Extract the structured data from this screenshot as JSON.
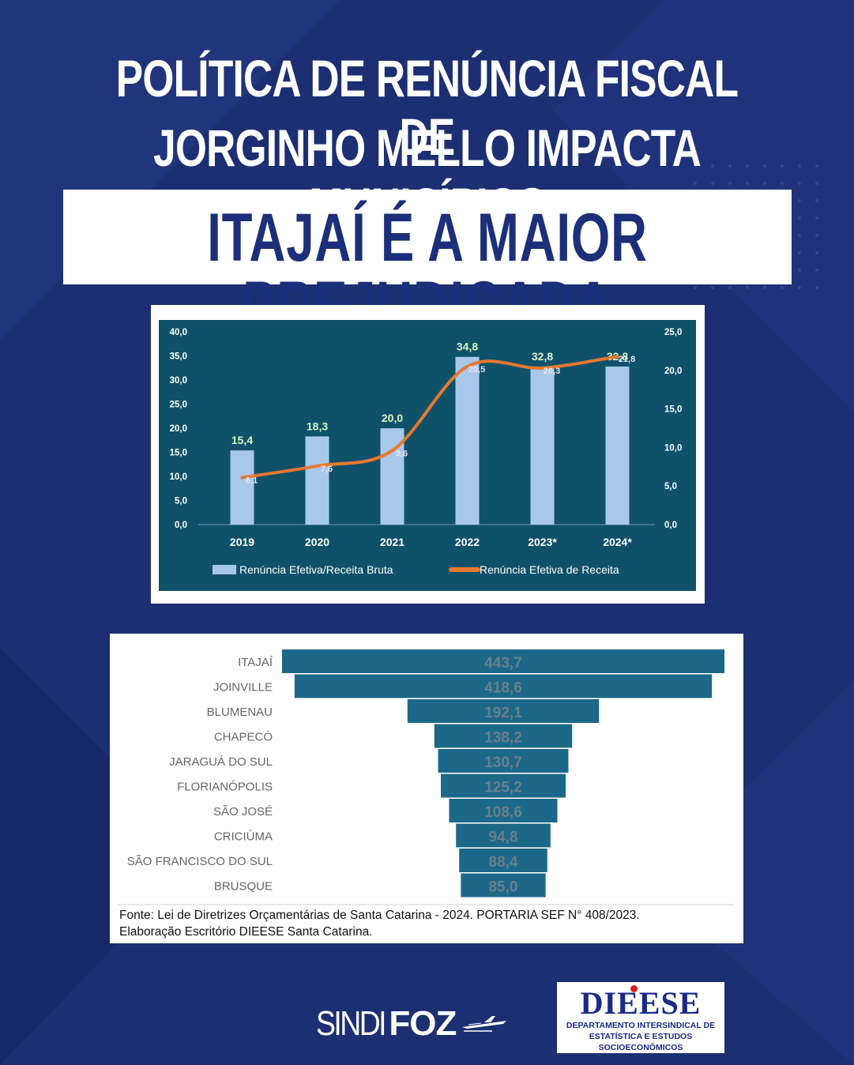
{
  "colors": {
    "background": "#1c2f73",
    "chart1_panel": "#0f5169",
    "bar_light": "#a8c8ea",
    "line_orange": "#e87830",
    "funnel_bar": "#1c6889",
    "funnel_label": "#6a7f8a",
    "title_navy": "#1b2f7a"
  },
  "header": {
    "line1": "POLÍTICA DE RENÚNCIA FISCAL DE",
    "line2": "JORGINHO MELLO IMPACTA MUNICÍPIOS",
    "subtitle": "ITAJAÍ É A MAIOR PREJUDICADA"
  },
  "chart_data": [
    {
      "type": "bar",
      "categories": [
        "2019",
        "2020",
        "2021",
        "2022",
        "2023*",
        "2024*"
      ],
      "series": [
        {
          "name": "Renúncia Efetiva/Receita Bruta",
          "type": "bar",
          "axis": "left",
          "values": [
            15.4,
            18.3,
            20.0,
            34.8,
            32.8,
            32.8
          ],
          "labels": [
            "15,4",
            "18,3",
            "20,0",
            "34,8",
            "32,8",
            "32,8"
          ]
        },
        {
          "name": "Renúncia Efetiva de Receita",
          "type": "line",
          "axis": "right",
          "values": [
            6.1,
            7.6,
            9.6,
            20.5,
            20.3,
            21.8
          ],
          "labels": [
            "6,1",
            "7,6",
            "9,6",
            "20,5",
            "20,3",
            "21,8"
          ]
        }
      ],
      "y_left": {
        "ylim": [
          0,
          40
        ],
        "ticks": [
          "0,0",
          "5,0",
          "10,0",
          "15,0",
          "20,0",
          "25,0",
          "30,0",
          "35,0",
          "40,0"
        ]
      },
      "y_right": {
        "ylim": [
          0,
          25
        ],
        "ticks": [
          "0,0",
          "5,0",
          "10,0",
          "15,0",
          "20,0",
          "25,0"
        ]
      },
      "legend": "bottom",
      "grid": false
    },
    {
      "type": "bar",
      "orientation": "horizontal",
      "style": "funnel",
      "categories": [
        "ITAJAÍ",
        "JOINVILLE",
        "BLUMENAU",
        "CHAPECÓ",
        "JARAGUÁ DO SUL",
        "FLORIANÓPOLIS",
        "SÃO JOSÉ",
        "CRICIÚMA",
        "SÃO FRANCISCO DO SUL",
        "BRUSQUE"
      ],
      "values": [
        443.7,
        418.6,
        192.1,
        138.2,
        130.7,
        125.2,
        108.6,
        94.8,
        88.4,
        85.0
      ],
      "labels": [
        "443,7",
        "418,6",
        "192,1",
        "138,2",
        "130,7",
        "125,2",
        "108,6",
        "94,8",
        "88,4",
        "85,0"
      ]
    }
  ],
  "source": {
    "line1": "Fonte: Lei de Diretrizes Orçamentárias de Santa Catarina - 2024. PORTARIA SEF N° 408/2023.",
    "line2": "Elaboração Escritório DIEESE Santa Catarina."
  },
  "logos": {
    "sindifoz_a": "SINDI",
    "sindifoz_b": "FOZ",
    "dieese_name": "DIEESE",
    "dieese_line1": "DEPARTAMENTO INTERSINDICAL DE",
    "dieese_line2": "ESTATÍSTICA E ESTUDOS SOCIOECONÔMICOS"
  }
}
